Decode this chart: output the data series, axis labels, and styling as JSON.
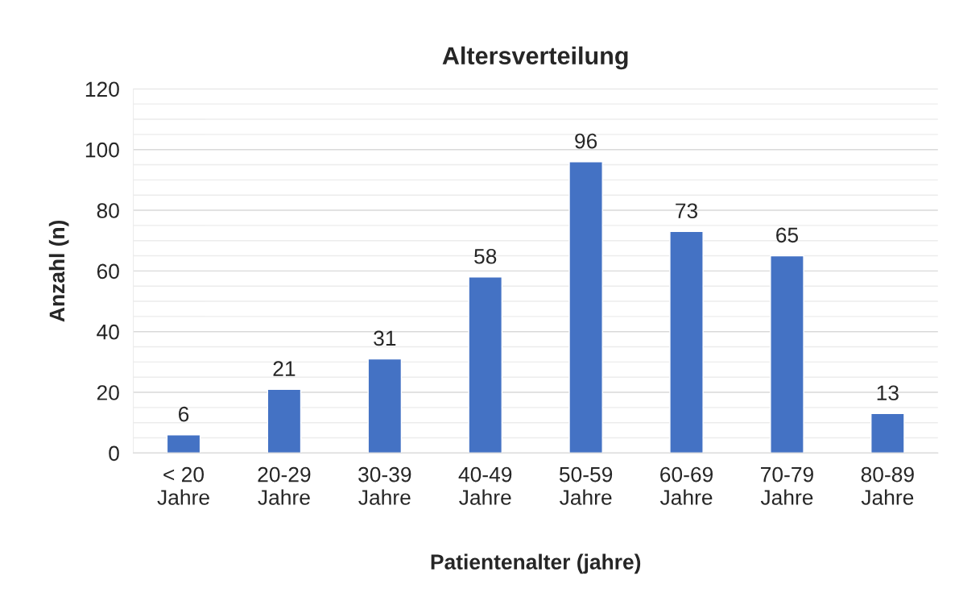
{
  "chart_data": {
    "type": "bar",
    "title": "Altersverteilung",
    "xlabel": "Patientenalter (jahre)",
    "ylabel": "Anzahl (n)",
    "categories": [
      "< 20\nJahre",
      "20-29\nJahre",
      "30-39\nJahre",
      "40-49\nJahre",
      "50-59\nJahre",
      "60-69\nJahre",
      "70-79\nJahre",
      "80-89\nJahre"
    ],
    "values": [
      6,
      21,
      31,
      58,
      96,
      73,
      65,
      13
    ],
    "color": "#4472c4",
    "data_labels": true,
    "ylim": [
      0,
      120
    ],
    "yticks": [
      0,
      {
        "value": 5,
        "label": null
      },
      {
        "value": 10,
        "label": null
      },
      {
        "value": 15,
        "label": null
      },
      20,
      {
        "value": 25,
        "label": null
      },
      {
        "value": 30,
        "label": null
      },
      {
        "value": 35,
        "label": null
      },
      40,
      {
        "value": 45,
        "label": null
      },
      {
        "value": 50,
        "label": null
      },
      {
        "value": 55,
        "label": null
      },
      60,
      {
        "value": 65,
        "label": null
      },
      {
        "value": 70,
        "label": null
      },
      {
        "value": 75,
        "label": null
      },
      80,
      {
        "value": 85,
        "label": null
      },
      {
        "value": 90,
        "label": null
      },
      {
        "value": 95,
        "label": null
      },
      100,
      {
        "value": 105,
        "label": null
      },
      {
        "value": 110,
        "label": null
      },
      {
        "value": 115,
        "label": null
      },
      120
    ],
    "grid": "y"
  }
}
